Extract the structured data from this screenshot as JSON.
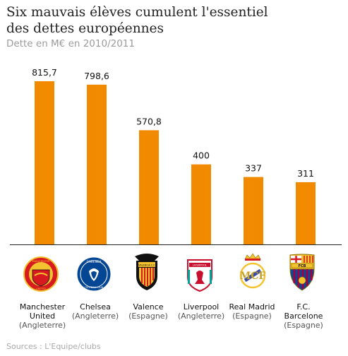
{
  "title_line1": "Six  mauvais élèves cumulent l'essentiel",
  "title_line2": "des dettes européennes",
  "subtitle": "Dette en M€ en 2010/2011",
  "source": "Sources : L'Equipe/clubs",
  "colors": {
    "bar": "#f28a00",
    "axis": "#222222"
  },
  "chart_data": {
    "type": "bar",
    "title": "Six  mauvais élèves cumulent l'essentiel des dettes européennes",
    "subtitle": "Dette en M€ en 2010/2011",
    "categories": [
      "Manchester United",
      "Chelsea",
      "Valence",
      "Liverpool",
      "Real Madrid",
      "F.C. Barcelone"
    ],
    "values": [
      815.7,
      798.6,
      570.8,
      400,
      337,
      311
    ],
    "value_labels": [
      "815,7",
      "798,6",
      "570,8",
      "400",
      "337",
      "311"
    ],
    "ylim": [
      0,
      840
    ],
    "grid": false
  },
  "clubs": [
    {
      "name1": "Manchester",
      "name2": "United",
      "country": "(Angleterre)",
      "logo": "manchester-united-crest"
    },
    {
      "name1": "Chelsea",
      "name2": "",
      "country": "(Angleterre)",
      "logo": "chelsea-crest"
    },
    {
      "name1": "Valence",
      "name2": "",
      "country": "(Espagne)",
      "logo": "valencia-crest"
    },
    {
      "name1": "Liverpool",
      "name2": "",
      "country": "(Angleterre)",
      "logo": "liverpool-crest"
    },
    {
      "name1": "Real Madrid",
      "name2": "",
      "country": "(Espagne)",
      "logo": "real-madrid-crest"
    },
    {
      "name1": "F.C.",
      "name2": "Barcelone",
      "country": "(Espagne)",
      "logo": "barcelona-crest"
    }
  ],
  "logo_text": {
    "mu": [
      "MANCHESTER",
      "UNITED"
    ],
    "ch": [
      "CHELSEA",
      "FOOTBALL CLUB"
    ],
    "va": "VALENCIA C.F.",
    "lv": "LIVERPOOL",
    "fcb": "FCB"
  }
}
